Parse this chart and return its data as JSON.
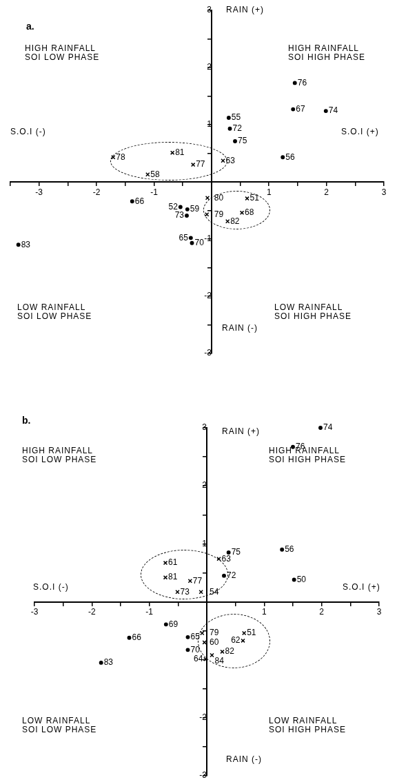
{
  "chart_data": [
    {
      "type": "scatter",
      "title": "a.",
      "xlim": [
        -3.5,
        3
      ],
      "ylim": [
        -3,
        3
      ],
      "xticks": [
        {
          "value": -3.5,
          "label": null
        },
        -3,
        {
          "value": -2.5,
          "label": null
        },
        -2,
        {
          "value": -1.5,
          "label": null
        },
        -1,
        {
          "value": -0.5,
          "label": null
        },
        {
          "value": 0,
          "label": null
        },
        {
          "value": 0.5,
          "label": null
        },
        1,
        {
          "value": 1.5,
          "label": null
        },
        2,
        {
          "value": 2.5,
          "label": null
        },
        3
      ],
      "yticks": [
        -3,
        {
          "value": -2.5,
          "label": null
        },
        -2,
        {
          "value": -1.5,
          "label": null
        },
        -1,
        {
          "value": -0.5,
          "label": null
        },
        {
          "value": 0,
          "label": null
        },
        {
          "value": 0.5,
          "label": null
        },
        1,
        {
          "value": 1.5,
          "label": null
        },
        2,
        {
          "value": 2.5,
          "label": null
        },
        3
      ],
      "legend": false,
      "series": [
        {
          "color": "#000000",
          "marker": "circle",
          "x": [
            1.45,
            1.42,
            1.99,
            0.3,
            0.32,
            0.41,
            1.24,
            -1.38,
            -0.42,
            -0.54,
            -0.43,
            -0.36,
            -0.34,
            -3.36
          ],
          "values": [
            1.73,
            1.27,
            1.24,
            1.12,
            0.93,
            0.71,
            0.43,
            -0.34,
            -0.48,
            -0.44,
            -0.59,
            -0.98,
            -1.07,
            -1.1
          ]
        },
        {
          "color": "#000000",
          "marker": "cross",
          "x": [
            -1.71,
            -0.68,
            -0.32,
            0.2,
            -1.11,
            -0.07,
            0.62,
            -0.08,
            0.53,
            0.28
          ],
          "values": [
            0.43,
            0.51,
            0.3,
            0.37,
            0.13,
            -0.28,
            -0.29,
            -0.57,
            -0.54,
            -0.69
          ]
        }
      ],
      "annotations": [
        "HIGH RAINFALL\nSOI LOW PHASE",
        "HIGH RAINFALL\nSOI HIGH PHASE",
        "LOW RAINFALL\nSOI LOW PHASE",
        "LOW RAINFALL\nSOI HIGH PHASE",
        "S.O.I (-)",
        "S.O.I (+)",
        "RAIN (+)",
        "RAIN (-)",
        {
          "text": "76",
          "x": 1.45,
          "y": 1.73
        },
        {
          "text": "67",
          "x": 1.42,
          "y": 1.27
        },
        {
          "text": "74",
          "x": 1.99,
          "y": 1.24
        },
        {
          "text": "55",
          "x": 0.3,
          "y": 1.12
        },
        {
          "text": "72",
          "x": 0.32,
          "y": 0.93
        },
        {
          "text": "75",
          "x": 0.41,
          "y": 0.71
        },
        {
          "text": "56",
          "x": 1.24,
          "y": 0.43
        },
        {
          "text": "66",
          "x": -1.38,
          "y": -0.34
        },
        {
          "text": "59",
          "x": -0.42,
          "y": -0.48
        },
        {
          "text": "52",
          "x": -0.54,
          "y": -0.44
        },
        {
          "text": "73",
          "x": -0.43,
          "y": -0.59
        },
        {
          "text": "65",
          "x": -0.36,
          "y": -0.98
        },
        {
          "text": "70",
          "x": -0.34,
          "y": -1.07
        },
        {
          "text": "83",
          "x": -3.36,
          "y": -1.1
        },
        {
          "text": "78",
          "x": -1.71,
          "y": 0.43
        },
        {
          "text": "81",
          "x": -0.68,
          "y": 0.51
        },
        {
          "text": "77",
          "x": -0.32,
          "y": 0.3
        },
        {
          "text": "63",
          "x": 0.2,
          "y": 0.37
        },
        {
          "text": "58",
          "x": -1.11,
          "y": 0.13
        },
        {
          "text": "80",
          "x": -0.07,
          "y": -0.28
        },
        {
          "text": "51",
          "x": 0.62,
          "y": -0.29
        },
        {
          "text": "79",
          "x": -0.08,
          "y": -0.57
        },
        {
          "text": "68",
          "x": 0.53,
          "y": -0.54
        },
        {
          "text": "82",
          "x": 0.28,
          "y": -0.69
        }
      ]
    },
    {
      "type": "scatter",
      "title": "b.",
      "xlim": [
        -3,
        3
      ],
      "ylim": [
        -3,
        3
      ],
      "xticks": [
        -3,
        {
          "value": -2.5,
          "label": null
        },
        -2,
        {
          "value": -1.5,
          "label": null
        },
        -1,
        {
          "value": -0.5,
          "label": null
        },
        {
          "value": 0,
          "label": null
        },
        {
          "value": 0.5,
          "label": null
        },
        1,
        {
          "value": 1.5,
          "label": null
        },
        2,
        {
          "value": 2.5,
          "label": null
        },
        3
      ],
      "yticks": [
        -3,
        {
          "value": -2.5,
          "label": null
        },
        -2,
        {
          "value": -1.5,
          "label": null
        },
        {
          "value": -1,
          "label": null
        },
        {
          "value": -0.5,
          "label": null
        },
        {
          "value": 0,
          "label": null
        },
        {
          "value": 0.5,
          "label": null
        },
        1,
        {
          "value": 1.5,
          "label": null
        },
        2,
        {
          "value": 2.5,
          "label": null
        },
        3
      ],
      "legend": false,
      "series": [
        {
          "color": "#000000",
          "marker": "circle",
          "x": [
            1.98,
            1.5,
            0.38,
            1.31,
            0.3,
            1.52,
            -0.71,
            -1.35,
            -0.33,
            -0.33,
            -1.84
          ],
          "values": [
            3.0,
            2.67,
            0.85,
            0.9,
            0.45,
            0.38,
            -0.39,
            -0.62,
            -0.61,
            -0.83,
            -1.05
          ]
        },
        {
          "color": "#000000",
          "marker": "cross",
          "x": [
            0.21,
            -0.72,
            -0.72,
            -0.29,
            -0.51,
            -0.1,
            -0.08,
            -0.04,
            0.65,
            0.63,
            0.27,
            0.09,
            -0.02
          ],
          "values": [
            0.74,
            0.67,
            0.42,
            0.36,
            0.17,
            0.17,
            -0.54,
            -0.7,
            -0.54,
            -0.67,
            -0.86,
            -0.92,
            -0.99
          ]
        }
      ],
      "annotations": [
        "HIGH RAINFALL\nSOI LOW PHASE",
        "HIGH RAINFALL\nSOI HIGH PHASE",
        "LOW RAINFALL\nSOI LOW PHASE",
        "LOW RAINFALL\nSOI HIGH PHASE",
        "S.O.I (-)",
        "S.O.I (+)",
        "RAIN (+)",
        "RAIN (-)",
        {
          "text": "74",
          "x": 1.98,
          "y": 3.0
        },
        {
          "text": "76",
          "x": 1.5,
          "y": 2.67
        },
        {
          "text": "75",
          "x": 0.38,
          "y": 0.85
        },
        {
          "text": "56",
          "x": 1.31,
          "y": 0.9
        },
        {
          "text": "72",
          "x": 0.3,
          "y": 0.45
        },
        {
          "text": "50",
          "x": 1.52,
          "y": 0.38
        },
        {
          "text": "69",
          "x": -0.71,
          "y": -0.39
        },
        {
          "text": "66",
          "x": -1.35,
          "y": -0.62
        },
        {
          "text": "65",
          "x": -0.33,
          "y": -0.61
        },
        {
          "text": "70",
          "x": -0.33,
          "y": -0.83
        },
        {
          "text": "83",
          "x": -1.84,
          "y": -1.05
        },
        {
          "text": "63",
          "x": 0.21,
          "y": 0.74
        },
        {
          "text": "61",
          "x": -0.72,
          "y": 0.67
        },
        {
          "text": "81",
          "x": -0.72,
          "y": 0.42
        },
        {
          "text": "77",
          "x": -0.29,
          "y": 0.36
        },
        {
          "text": "73",
          "x": -0.51,
          "y": 0.17
        },
        {
          "text": "54",
          "x": -0.1,
          "y": 0.17
        },
        {
          "text": "79",
          "x": -0.08,
          "y": -0.54
        },
        {
          "text": "60",
          "x": -0.04,
          "y": -0.7
        },
        {
          "text": "51",
          "x": 0.65,
          "y": -0.54
        },
        {
          "text": "62",
          "x": 0.63,
          "y": -0.67
        },
        {
          "text": "82",
          "x": 0.27,
          "y": -0.86
        },
        {
          "text": "84",
          "x": 0.09,
          "y": -0.92
        },
        {
          "text": "64",
          "x": -0.02,
          "y": -0.99
        }
      ]
    }
  ]
}
